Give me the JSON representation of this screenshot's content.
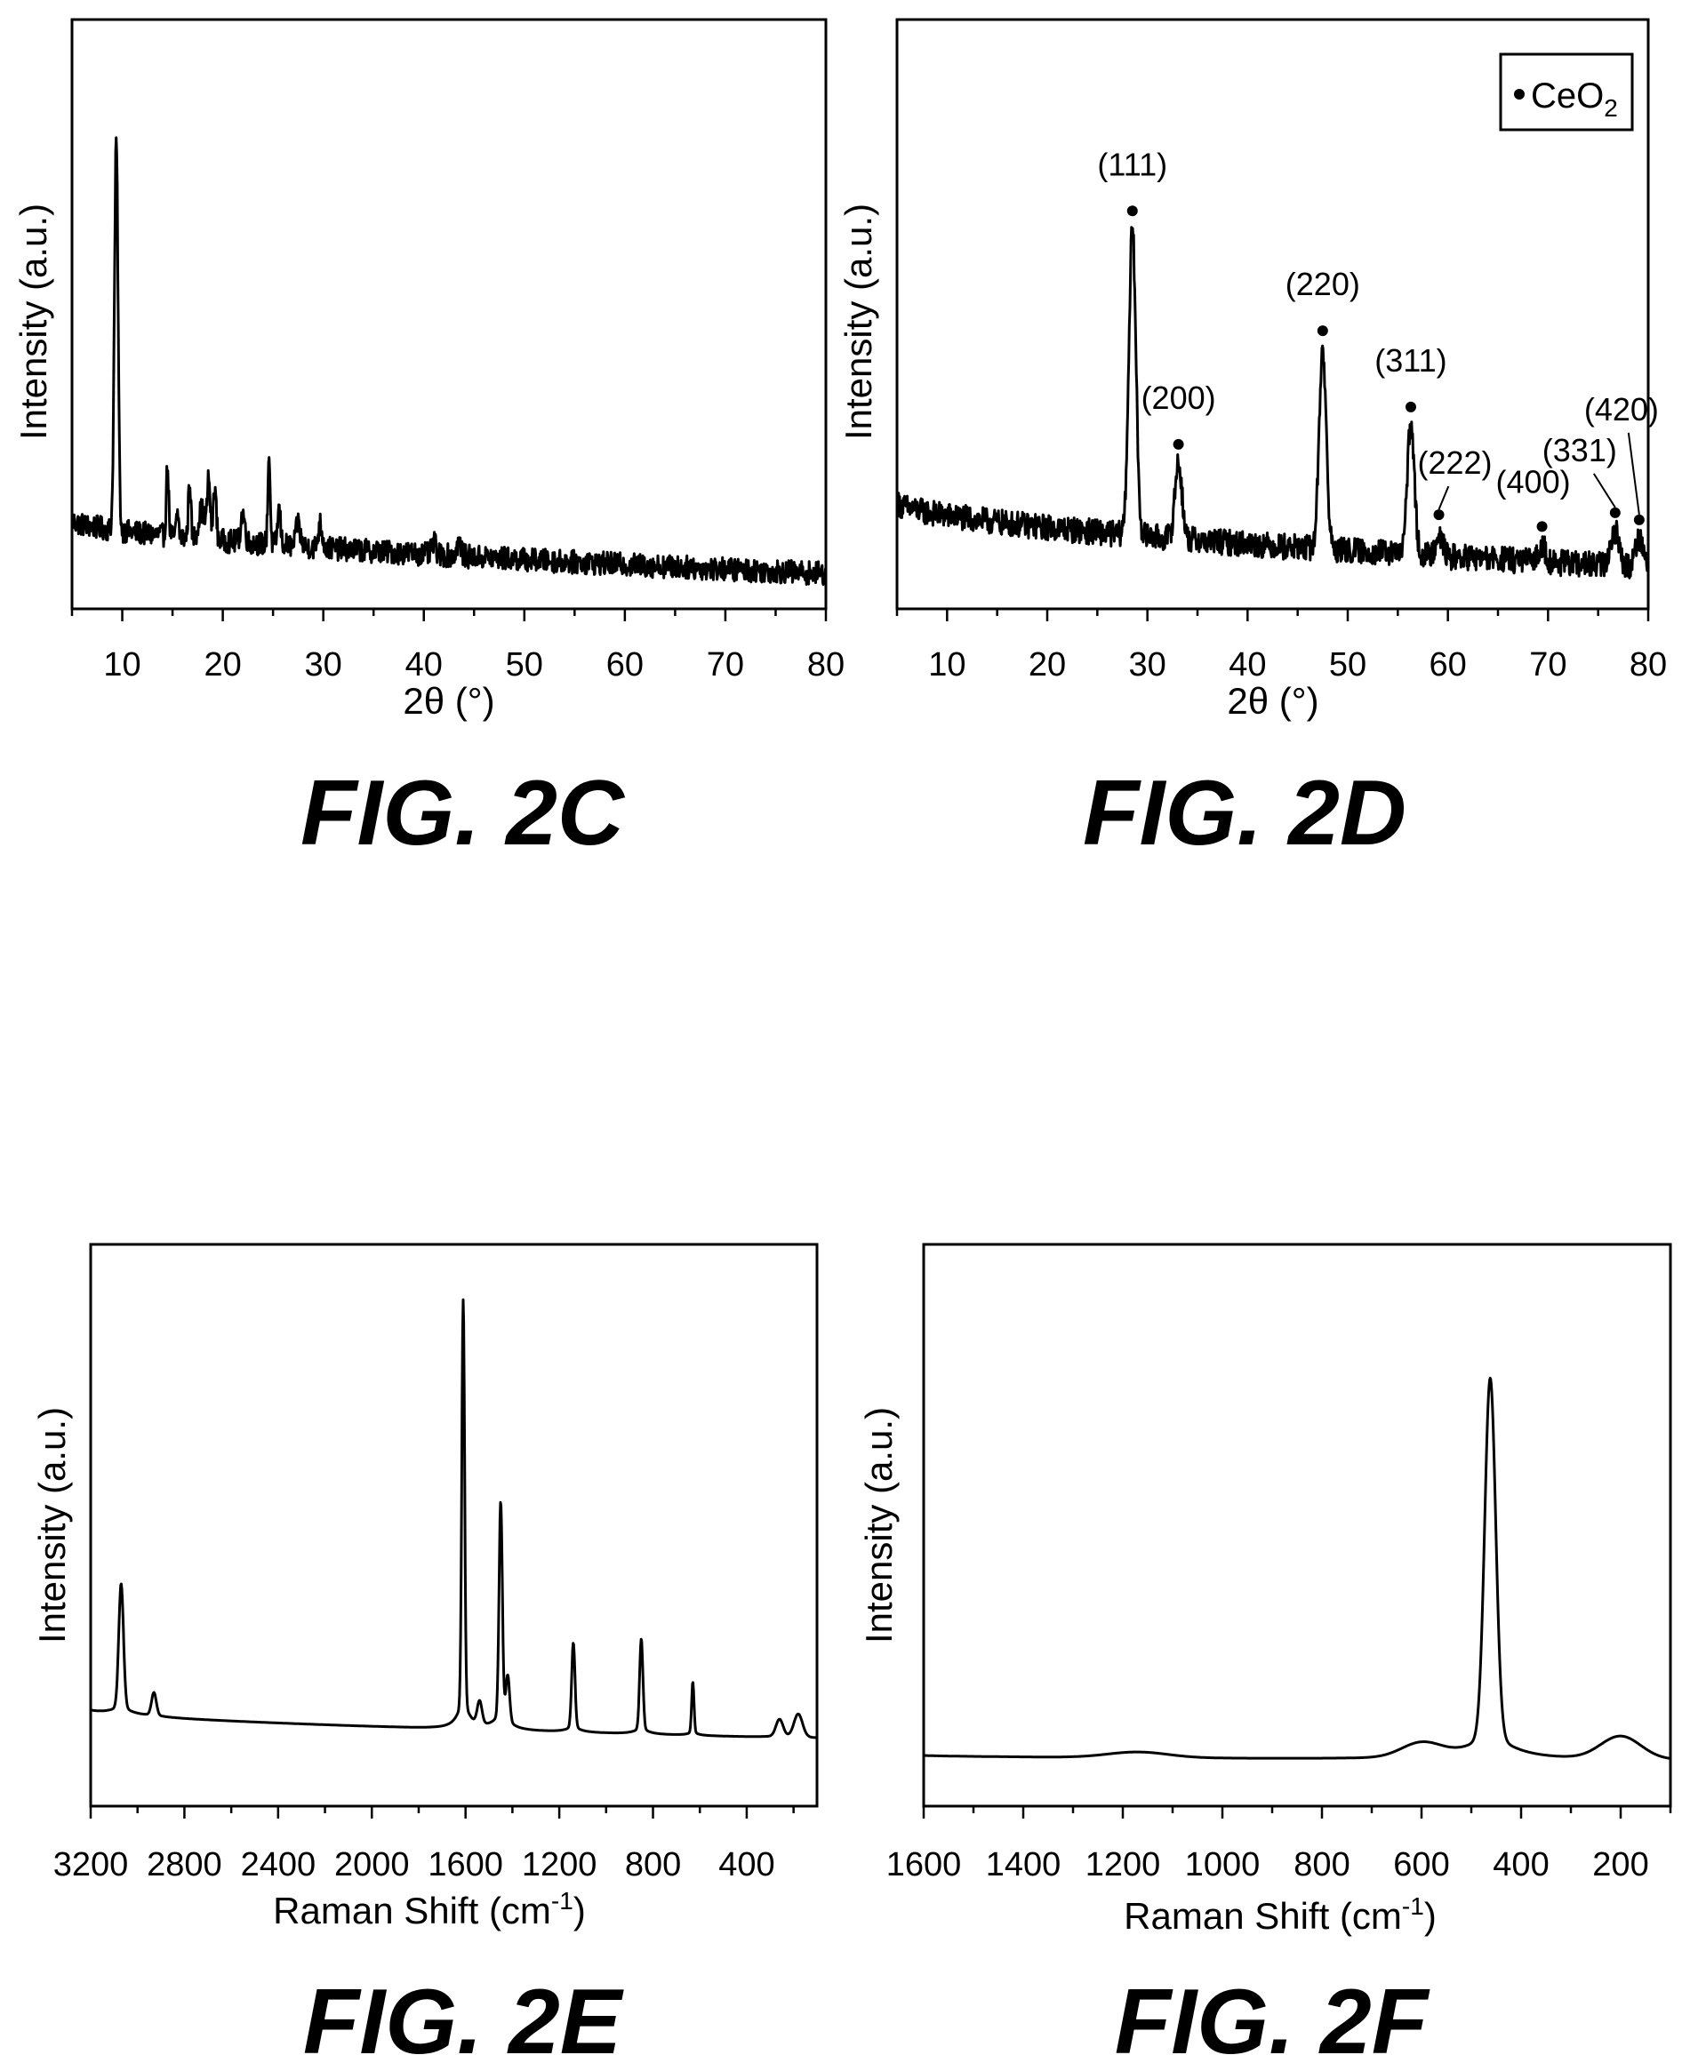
{
  "chart_data": [
    {
      "id": "2C",
      "type": "line",
      "figure_label": "FIG. 2C",
      "xlabel": "2θ (°)",
      "ylabel": "Intensity (a.u.)",
      "xlim": [
        5,
        80
      ],
      "xticks": [
        10,
        20,
        30,
        40,
        50,
        60,
        70,
        80
      ],
      "ylim": [
        0,
        100
      ],
      "baseline": {
        "start": 15,
        "end": 6,
        "noise": 2.0
      },
      "peaks": [
        {
          "x": 9.4,
          "h": 66,
          "w": 0.18
        },
        {
          "x": 14.5,
          "h": 12,
          "w": 0.12
        },
        {
          "x": 15.5,
          "h": 4,
          "w": 0.12
        },
        {
          "x": 16.7,
          "h": 10,
          "w": 0.12
        },
        {
          "x": 17.9,
          "h": 5,
          "w": 0.3
        },
        {
          "x": 18.6,
          "h": 10,
          "w": 0.15
        },
        {
          "x": 19.2,
          "h": 9,
          "w": 0.15
        },
        {
          "x": 22.0,
          "h": 5,
          "w": 0.2
        },
        {
          "x": 24.6,
          "h": 15,
          "w": 0.12
        },
        {
          "x": 25.6,
          "h": 6,
          "w": 0.15
        },
        {
          "x": 27.5,
          "h": 4,
          "w": 0.2
        },
        {
          "x": 29.7,
          "h": 4,
          "w": 0.2
        },
        {
          "x": 41.0,
          "h": 2,
          "w": 0.2
        },
        {
          "x": 43.5,
          "h": 2.5,
          "w": 0.2
        }
      ],
      "annotations": []
    },
    {
      "id": "2D",
      "type": "line",
      "figure_label": "FIG. 2D",
      "xlabel": "2θ (°)",
      "ylabel": "Intensity (a.u.)",
      "xlim": [
        5,
        80
      ],
      "xticks": [
        10,
        20,
        30,
        40,
        50,
        60,
        70,
        80
      ],
      "ylim": [
        0,
        100
      ],
      "baseline": {
        "start": 18,
        "end": 7,
        "noise": 2.2
      },
      "peaks": [
        {
          "x": 28.5,
          "h": 52,
          "w": 0.35
        },
        {
          "x": 33.1,
          "h": 13,
          "w": 0.35
        },
        {
          "x": 47.5,
          "h": 34,
          "w": 0.35
        },
        {
          "x": 56.3,
          "h": 22,
          "w": 0.35
        },
        {
          "x": 59.1,
          "h": 4,
          "w": 0.35
        },
        {
          "x": 69.4,
          "h": 3,
          "w": 0.35
        },
        {
          "x": 76.7,
          "h": 6,
          "w": 0.4
        },
        {
          "x": 79.1,
          "h": 5,
          "w": 0.4
        }
      ],
      "legend": {
        "marker": "•",
        "text": "CeO",
        "subscript": "2",
        "position": "top-right"
      },
      "annotations": [
        {
          "label": "(111)",
          "x": 28.5
        },
        {
          "label": "(200)",
          "x": 33.1
        },
        {
          "label": "(220)",
          "x": 47.5
        },
        {
          "label": "(311)",
          "x": 56.3
        },
        {
          "label": "(222)",
          "x": 59.1
        },
        {
          "label": "(400)",
          "x": 69.4
        },
        {
          "label": "(331)",
          "x": 76.7
        },
        {
          "label": "(420)",
          "x": 79.1
        }
      ]
    },
    {
      "id": "2E",
      "type": "line",
      "figure_label": "FIG. 2E",
      "xlabel": "Raman Shift (cm",
      "xlabel_sup": "-1",
      "xlabel_tail": ")",
      "ylabel": "Intensity (a.u.)",
      "xlim": [
        3200,
        100
      ],
      "xticks": [
        3200,
        2800,
        2400,
        2000,
        1600,
        1200,
        800,
        400
      ],
      "ylim": [
        0,
        100
      ],
      "baseline": {
        "start": 17,
        "end": 12,
        "noise": 0
      },
      "peaks": [
        {
          "x": 3070,
          "h": 22,
          "w": 10
        },
        {
          "x": 2930,
          "h": 4,
          "w": 10
        },
        {
          "x": 1610,
          "h": 72,
          "w": 6
        },
        {
          "x": 1540,
          "h": 4,
          "w": 10
        },
        {
          "x": 1450,
          "h": 38,
          "w": 7
        },
        {
          "x": 1420,
          "h": 8,
          "w": 8
        },
        {
          "x": 1140,
          "h": 15,
          "w": 7
        },
        {
          "x": 850,
          "h": 16,
          "w": 7
        },
        {
          "x": 630,
          "h": 9,
          "w": 5
        },
        {
          "x": 260,
          "h": 3,
          "w": 15
        },
        {
          "x": 180,
          "h": 4,
          "w": 18
        }
      ],
      "annotations": []
    },
    {
      "id": "2F",
      "type": "line",
      "figure_label": "FIG. 2F",
      "xlabel": "Raman Shift (cm",
      "xlabel_sup": "-1",
      "xlabel_tail": ")",
      "ylabel": "Intensity (a.u.)",
      "xlim": [
        1600,
        100
      ],
      "xticks": [
        1600,
        1400,
        1200,
        1000,
        800,
        600,
        400,
        200
      ],
      "ylim": [
        0,
        100
      ],
      "baseline": {
        "start": 9,
        "end": 8,
        "noise": 0
      },
      "peaks": [
        {
          "x": 462,
          "h": 64,
          "w": 11
        },
        {
          "x": 600,
          "h": 2.5,
          "w": 40
        },
        {
          "x": 1170,
          "h": 1,
          "w": 60
        },
        {
          "x": 200,
          "h": 4,
          "w": 40
        }
      ],
      "annotations": []
    }
  ]
}
